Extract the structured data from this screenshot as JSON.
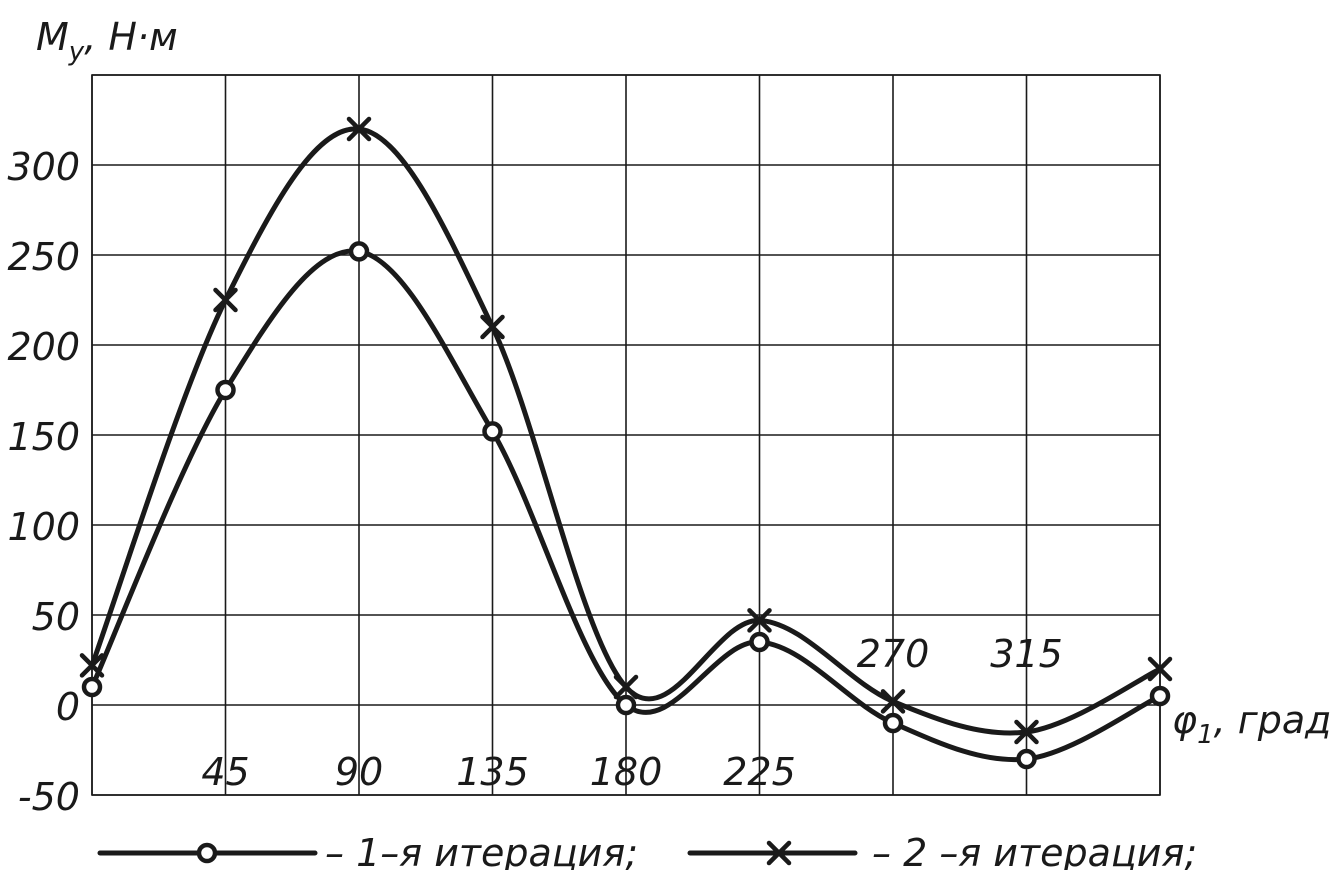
{
  "chart_data": {
    "type": "line",
    "ylabel": "M_y, Н·м",
    "ylabel_main": "M",
    "ylabel_sub": "y",
    "ylabel_rest": ", Н·м",
    "xlabel": "φ1, град",
    "xlabel_main": "φ",
    "xlabel_sub": "1",
    "xlabel_rest": ", град",
    "xlim": [
      0,
      360
    ],
    "ylim": [
      -50,
      350
    ],
    "grid": true,
    "x_ticks": [
      0,
      45,
      90,
      135,
      180,
      225,
      270,
      315,
      360
    ],
    "x_tick_labels": [
      {
        "x": 45,
        "label": "45",
        "position": "below"
      },
      {
        "x": 90,
        "label": "90",
        "position": "below"
      },
      {
        "x": 135,
        "label": "135",
        "position": "below"
      },
      {
        "x": 180,
        "label": "180",
        "position": "below"
      },
      {
        "x": 225,
        "label": "225",
        "position": "below"
      },
      {
        "x": 270,
        "label": "270",
        "position": "above"
      },
      {
        "x": 315,
        "label": "315",
        "position": "above"
      }
    ],
    "y_tick_labels": [
      "-50",
      "0",
      "50",
      "100",
      "150",
      "200",
      "250",
      "300"
    ],
    "y_ticks": [
      -50,
      0,
      50,
      100,
      150,
      200,
      250,
      300
    ],
    "x": [
      0,
      45,
      90,
      135,
      180,
      225,
      270,
      315,
      360
    ],
    "series": [
      {
        "name": "1-я итерация;",
        "marker": "circle",
        "values": [
          10,
          175,
          252,
          152,
          0,
          35,
          -10,
          -30,
          5
        ]
      },
      {
        "name": "2 -я итерация;",
        "marker": "cross",
        "values": [
          22,
          225,
          320,
          210,
          10,
          47,
          2,
          -15,
          20
        ]
      }
    ],
    "legend": {
      "placement": "bottom",
      "items": [
        "– 1–я итерация;",
        "– 2 –я итерация;"
      ]
    }
  }
}
